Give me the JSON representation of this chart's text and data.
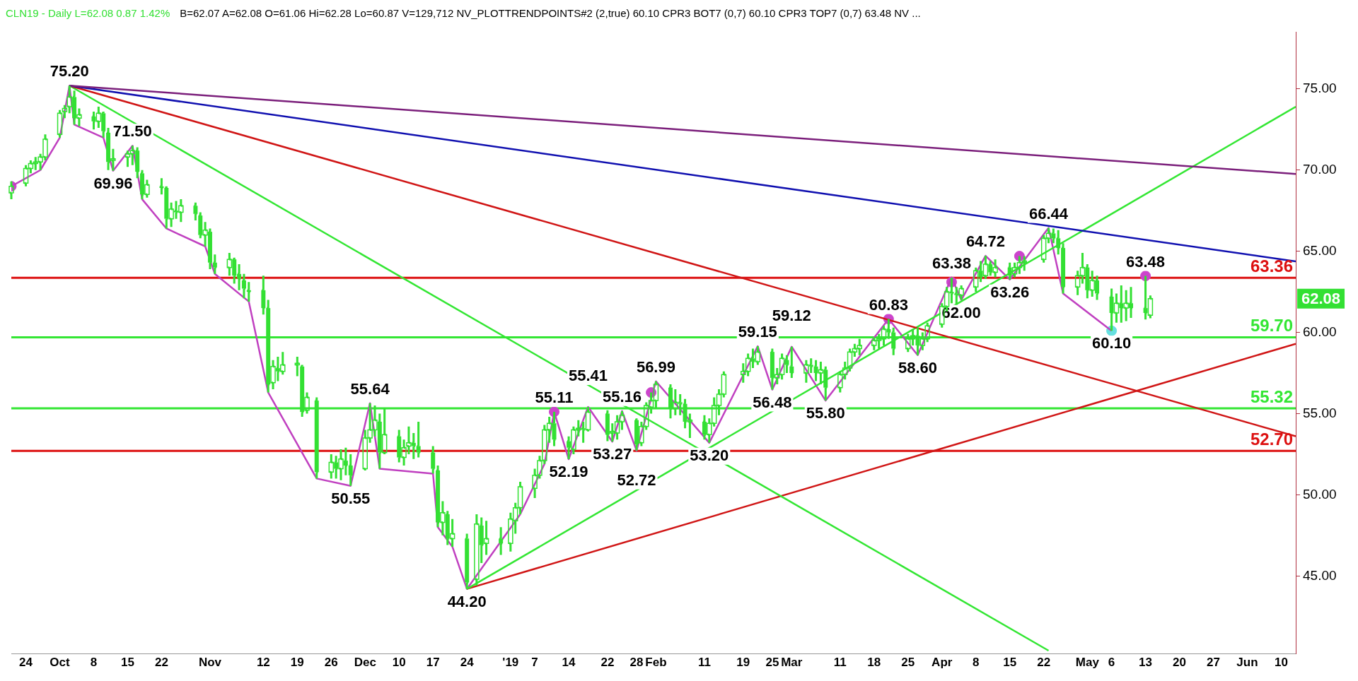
{
  "chart_data": {
    "type": "candlestick",
    "title": "CLN19 - Daily  L=62.08  0.87  1.42%",
    "subtitle": "B=62.07  A=62.08  O=61.06  Hi=62.28  Lo=60.87  V=129,712  NV_PLOTTRENDPOINTS#2 (2,true)  60.10  CPR3 BOT7 (0,7)  60.10  CPR3 TOP7 (0,7)  63.48  NV ...",
    "color": "#33e033",
    "x": [
      "2018-09-21",
      "2018-09-24",
      "2018-09-25",
      "2018-09-26",
      "2018-09-27",
      "2018-09-28",
      "2018-10-01",
      "2018-10-02",
      "2018-10-03",
      "2018-10-04",
      "2018-10-05",
      "2018-10-08",
      "2018-10-09",
      "2018-10-10",
      "2018-10-11",
      "2018-10-12",
      "2018-10-15",
      "2018-10-16",
      "2018-10-17",
      "2018-10-18",
      "2018-10-19",
      "2018-10-22",
      "2018-10-23",
      "2018-10-24",
      "2018-10-25",
      "2018-10-26",
      "2018-10-29",
      "2018-10-30",
      "2018-10-31",
      "2018-11-01",
      "2018-11-02",
      "2018-11-05",
      "2018-11-06",
      "2018-11-07",
      "2018-11-08",
      "2018-11-09",
      "2018-11-12",
      "2018-11-13",
      "2018-11-14",
      "2018-11-15",
      "2018-11-16",
      "2018-11-19",
      "2018-11-20",
      "2018-11-21",
      "2018-11-23",
      "2018-11-26",
      "2018-11-27",
      "2018-11-28",
      "2018-11-29",
      "2018-11-30",
      "2018-12-03",
      "2018-12-04",
      "2018-12-05",
      "2018-12-06",
      "2018-12-07",
      "2018-12-10",
      "2018-12-11",
      "2018-12-12",
      "2018-12-13",
      "2018-12-14",
      "2018-12-17",
      "2018-12-18",
      "2018-12-19",
      "2018-12-20",
      "2018-12-21",
      "2018-12-24",
      "2018-12-26",
      "2018-12-27",
      "2018-12-28",
      "2018-12-31",
      "2019-01-02",
      "2019-01-03",
      "2019-01-04",
      "2019-01-07",
      "2019-01-08",
      "2019-01-09",
      "2019-01-10",
      "2019-01-11",
      "2019-01-14",
      "2019-01-15",
      "2019-01-16",
      "2019-01-17",
      "2019-01-18",
      "2019-01-22",
      "2019-01-23",
      "2019-01-24",
      "2019-01-25",
      "2019-01-28",
      "2019-01-29",
      "2019-01-30",
      "2019-01-31",
      "2019-02-01",
      "2019-02-04",
      "2019-02-05",
      "2019-02-06",
      "2019-02-07",
      "2019-02-08",
      "2019-02-11",
      "2019-02-12",
      "2019-02-13",
      "2019-02-14",
      "2019-02-15",
      "2019-02-19",
      "2019-02-20",
      "2019-02-21",
      "2019-02-22",
      "2019-02-25",
      "2019-02-26",
      "2019-02-27",
      "2019-02-28",
      "2019-03-01",
      "2019-03-04",
      "2019-03-05",
      "2019-03-06",
      "2019-03-07",
      "2019-03-08",
      "2019-03-11",
      "2019-03-12",
      "2019-03-13",
      "2019-03-14",
      "2019-03-15",
      "2019-03-18",
      "2019-03-19",
      "2019-03-20",
      "2019-03-21",
      "2019-03-22",
      "2019-03-25",
      "2019-03-26",
      "2019-03-27",
      "2019-03-28",
      "2019-03-29",
      "2019-04-01",
      "2019-04-02",
      "2019-04-03",
      "2019-04-04",
      "2019-04-05",
      "2019-04-08",
      "2019-04-09",
      "2019-04-10",
      "2019-04-11",
      "2019-04-12",
      "2019-04-15",
      "2019-04-16",
      "2019-04-17",
      "2019-04-18",
      "2019-04-22",
      "2019-04-23",
      "2019-04-24",
      "2019-04-25",
      "2019-04-26",
      "2019-04-29",
      "2019-04-30",
      "2019-05-01",
      "2019-05-02",
      "2019-05-03",
      "2019-05-06",
      "2019-05-07",
      "2019-05-08",
      "2019-05-09",
      "2019-05-10",
      "2019-05-13",
      "2019-05-14"
    ],
    "ohlc": [
      [
        68.6,
        69.3,
        68.2,
        69.0
      ],
      [
        69.2,
        70.3,
        69.0,
        70.1
      ],
      [
        70.1,
        70.6,
        69.8,
        70.4
      ],
      [
        70.4,
        70.8,
        70.0,
        70.5
      ],
      [
        70.5,
        71.0,
        70.0,
        70.8
      ],
      [
        70.8,
        72.2,
        70.6,
        71.9
      ],
      [
        72.2,
        73.7,
        72.0,
        73.5
      ],
      [
        73.6,
        74.0,
        73.2,
        73.8
      ],
      [
        73.9,
        75.2,
        73.5,
        74.5
      ],
      [
        74.5,
        74.9,
        72.8,
        73.2
      ],
      [
        73.2,
        73.8,
        72.7,
        73.4
      ],
      [
        73.3,
        73.6,
        72.5,
        73.0
      ],
      [
        73.0,
        73.9,
        72.6,
        73.5
      ],
      [
        73.5,
        73.6,
        72.0,
        72.4
      ],
      [
        72.3,
        72.6,
        70.0,
        70.5
      ],
      [
        70.6,
        71.3,
        69.96,
        70.7
      ],
      [
        70.8,
        71.2,
        70.2,
        71.0
      ],
      [
        71.0,
        71.5,
        70.3,
        71.2
      ],
      [
        71.2,
        71.4,
        69.5,
        69.9
      ],
      [
        69.8,
        70.0,
        68.2,
        68.5
      ],
      [
        68.5,
        69.4,
        68.3,
        69.1
      ],
      [
        69.0,
        69.5,
        68.5,
        68.9
      ],
      [
        68.9,
        69.0,
        66.4,
        67.0
      ],
      [
        67.0,
        68.0,
        66.5,
        67.6
      ],
      [
        67.5,
        68.1,
        67.0,
        67.4
      ],
      [
        67.4,
        68.2,
        66.8,
        67.8
      ],
      [
        67.8,
        68.0,
        66.9,
        67.3
      ],
      [
        67.2,
        67.4,
        65.8,
        66.0
      ],
      [
        66.0,
        66.8,
        65.3,
        66.3
      ],
      [
        66.2,
        66.4,
        63.9,
        64.3
      ],
      [
        64.3,
        64.8,
        63.6,
        64.0
      ],
      [
        64.0,
        64.9,
        63.5,
        64.5
      ],
      [
        64.5,
        64.6,
        63.0,
        63.5
      ],
      [
        63.6,
        64.2,
        62.6,
        63.3
      ],
      [
        63.2,
        63.6,
        62.1,
        62.7
      ],
      [
        62.6,
        63.1,
        61.9,
        62.5
      ],
      [
        62.6,
        63.5,
        61.1,
        61.5
      ],
      [
        61.5,
        62.0,
        56.3,
        56.8
      ],
      [
        56.9,
        58.3,
        56.5,
        57.9
      ],
      [
        57.8,
        58.5,
        57.0,
        57.6
      ],
      [
        57.6,
        58.8,
        57.4,
        58.0
      ],
      [
        58.0,
        58.5,
        57.3,
        58.1
      ],
      [
        57.9,
        58.0,
        54.8,
        55.1
      ],
      [
        55.2,
        56.3,
        55.0,
        56.0
      ],
      [
        55.8,
        56.0,
        51.0,
        51.4
      ],
      [
        51.4,
        52.5,
        51.0,
        52.0
      ],
      [
        52.0,
        52.4,
        51.0,
        51.6
      ],
      [
        51.6,
        52.8,
        50.9,
        52.2
      ],
      [
        52.1,
        52.9,
        51.2,
        51.8
      ],
      [
        51.8,
        52.5,
        50.55,
        51.2
      ],
      [
        51.6,
        54.0,
        51.5,
        53.5
      ],
      [
        53.5,
        55.64,
        53.2,
        54.0
      ],
      [
        54.0,
        55.5,
        53.6,
        54.6
      ],
      [
        54.5,
        55.0,
        51.6,
        52.6
      ],
      [
        52.6,
        55.3,
        52.5,
        53.7
      ],
      [
        53.6,
        54.0,
        52.0,
        52.3
      ],
      [
        52.3,
        53.4,
        51.8,
        52.9
      ],
      [
        53.0,
        54.2,
        52.5,
        53.2
      ],
      [
        53.2,
        53.8,
        52.2,
        53.0
      ],
      [
        53.0,
        54.5,
        52.3,
        52.6
      ],
      [
        52.6,
        53.0,
        51.3,
        51.6
      ],
      [
        51.5,
        51.8,
        48.0,
        48.3
      ],
      [
        48.3,
        49.6,
        47.5,
        48.9
      ],
      [
        48.8,
        49.0,
        46.9,
        47.3
      ],
      [
        47.3,
        48.5,
        46.8,
        47.6
      ],
      [
        47.3,
        47.6,
        44.2,
        44.6
      ],
      [
        44.8,
        48.8,
        44.4,
        48.2
      ],
      [
        48.1,
        48.6,
        45.8,
        46.9
      ],
      [
        47.0,
        48.4,
        46.3,
        47.3
      ],
      [
        47.3,
        48.0,
        46.3,
        47.0
      ],
      [
        47.0,
        48.9,
        46.5,
        48.5
      ],
      [
        48.4,
        49.5,
        47.6,
        49.2
      ],
      [
        49.2,
        50.8,
        48.8,
        50.5
      ],
      [
        50.4,
        51.6,
        49.8,
        51.2
      ],
      [
        51.2,
        52.4,
        51.0,
        52.1
      ],
      [
        52.1,
        54.3,
        51.9,
        54.0
      ],
      [
        54.0,
        54.8,
        53.2,
        54.4
      ],
      [
        54.4,
        55.11,
        53.0,
        53.4
      ],
      [
        53.3,
        53.6,
        52.19,
        52.9
      ],
      [
        52.8,
        54.2,
        52.5,
        54.0
      ],
      [
        54.0,
        54.6,
        53.6,
        54.1
      ],
      [
        54.1,
        54.5,
        53.2,
        54.0
      ],
      [
        54.0,
        55.41,
        53.9,
        55.1
      ],
      [
        55.0,
        55.2,
        53.3,
        53.7
      ],
      [
        53.8,
        54.4,
        53.27,
        53.9
      ],
      [
        53.8,
        54.9,
        53.4,
        54.5
      ],
      [
        54.5,
        55.16,
        54.0,
        54.9
      ],
      [
        54.6,
        54.7,
        52.72,
        53.1
      ],
      [
        53.2,
        54.5,
        53.0,
        54.2
      ],
      [
        54.2,
        55.7,
        54.0,
        55.5
      ],
      [
        55.4,
        56.3,
        55.0,
        55.8
      ],
      [
        55.8,
        56.99,
        55.3,
        56.8
      ],
      [
        56.6,
        56.8,
        54.7,
        55.3
      ],
      [
        55.3,
        56.5,
        54.9,
        55.7
      ],
      [
        55.7,
        56.2,
        54.9,
        55.6
      ],
      [
        55.6,
        55.9,
        54.1,
        54.5
      ],
      [
        54.5,
        55.0,
        53.5,
        54.6
      ],
      [
        54.5,
        54.9,
        53.4,
        53.7
      ],
      [
        53.7,
        54.7,
        53.2,
        54.4
      ],
      [
        54.4,
        56.0,
        54.2,
        55.5
      ],
      [
        55.5,
        56.5,
        54.9,
        56.2
      ],
      [
        56.2,
        57.6,
        56.0,
        57.4
      ],
      [
        57.4,
        58.1,
        56.9,
        57.6
      ],
      [
        57.6,
        58.7,
        57.3,
        58.4
      ],
      [
        58.4,
        59.0,
        57.8,
        58.2
      ],
      [
        58.2,
        59.15,
        58.0,
        58.8
      ],
      [
        58.8,
        59.0,
        56.48,
        57.2
      ],
      [
        57.2,
        57.8,
        56.8,
        57.4
      ],
      [
        57.4,
        58.7,
        57.1,
        58.4
      ],
      [
        58.3,
        58.6,
        57.5,
        58.0
      ],
      [
        57.9,
        59.12,
        57.2,
        57.5
      ],
      [
        57.5,
        58.3,
        56.9,
        58.0
      ],
      [
        58.0,
        58.4,
        57.5,
        57.9
      ],
      [
        57.9,
        58.3,
        57.0,
        57.5
      ],
      [
        57.5,
        58.2,
        56.8,
        57.7
      ],
      [
        57.7,
        57.9,
        55.8,
        56.6
      ],
      [
        56.6,
        57.6,
        56.3,
        57.4
      ],
      [
        57.4,
        58.2,
        57.1,
        57.8
      ],
      [
        57.8,
        59.0,
        57.6,
        58.8
      ],
      [
        58.8,
        59.3,
        58.5,
        59.0
      ],
      [
        59.0,
        59.6,
        58.6,
        59.2
      ],
      [
        59.2,
        59.7,
        58.9,
        59.5
      ],
      [
        59.5,
        59.9,
        59.0,
        59.6
      ],
      [
        59.6,
        60.4,
        59.2,
        60.2
      ],
      [
        60.2,
        60.83,
        59.6,
        60.0
      ],
      [
        60.0,
        60.3,
        58.6,
        59.0
      ],
      [
        59.0,
        59.9,
        58.8,
        59.6
      ],
      [
        59.6,
        60.2,
        59.2,
        59.8
      ],
      [
        59.8,
        60.3,
        58.6,
        59.2
      ],
      [
        59.2,
        60.0,
        58.9,
        59.6
      ],
      [
        59.6,
        60.6,
        59.4,
        60.4
      ],
      [
        60.5,
        61.8,
        60.3,
        61.6
      ],
      [
        61.6,
        62.8,
        61.3,
        62.5
      ],
      [
        62.5,
        63.38,
        61.8,
        62.4
      ],
      [
        62.4,
        62.8,
        61.7,
        62.3
      ],
      [
        62.3,
        62.9,
        62.0,
        62.7
      ],
      [
        62.8,
        64.0,
        62.5,
        63.8
      ],
      [
        63.8,
        64.4,
        63.1,
        63.4
      ],
      [
        63.5,
        64.72,
        63.3,
        64.2
      ],
      [
        64.2,
        64.4,
        63.5,
        63.7
      ],
      [
        63.7,
        64.5,
        63.4,
        64.0
      ],
      [
        64.0,
        64.3,
        63.26,
        63.5
      ],
      [
        63.6,
        64.3,
        63.4,
        64.0
      ],
      [
        64.0,
        64.7,
        63.6,
        64.3
      ],
      [
        64.3,
        64.7,
        63.8,
        64.4
      ],
      [
        64.5,
        66.0,
        64.3,
        65.8
      ],
      [
        65.8,
        66.44,
        65.5,
        66.1
      ],
      [
        66.1,
        66.4,
        65.5,
        65.8
      ],
      [
        65.8,
        66.3,
        64.8,
        65.2
      ],
      [
        65.2,
        65.5,
        62.4,
        62.8
      ],
      [
        62.8,
        63.8,
        62.3,
        63.5
      ],
      [
        63.5,
        64.9,
        63.0,
        64.0
      ],
      [
        64.0,
        64.2,
        62.1,
        62.6
      ],
      [
        62.6,
        63.8,
        62.2,
        63.2
      ],
      [
        63.2,
        63.5,
        62.0,
        62.4
      ],
      [
        62.2,
        62.7,
        60.1,
        61.2
      ],
      [
        61.2,
        62.4,
        60.6,
        61.8
      ],
      [
        61.8,
        62.9,
        60.6,
        61.5
      ],
      [
        61.5,
        62.6,
        60.7,
        61.8
      ],
      [
        61.8,
        62.8,
        60.9,
        61.5
      ],
      [
        61.5,
        63.48,
        60.8,
        61.2
      ],
      [
        61.06,
        62.28,
        60.87,
        62.08
      ]
    ],
    "series": [
      {
        "type": "line",
        "color": "#7b1f7b",
        "x": [
          "2018-10-03",
          "2019-06-13"
        ],
        "values": [
          75.2,
          69.76
        ]
      },
      {
        "type": "line",
        "color": "#1010b0",
        "x": [
          "2018-10-03",
          "2019-06-13"
        ],
        "values": [
          75.2,
          64.38
        ]
      },
      {
        "type": "line",
        "color": "#d01515",
        "x": [
          "2018-10-03",
          "2019-06-13"
        ],
        "values": [
          75.2,
          53.6
        ]
      },
      {
        "type": "line",
        "color": "#33e633",
        "x": [
          "2018-10-03",
          "2019-04-23"
        ],
        "values": [
          75.2,
          40.4
        ]
      },
      {
        "type": "line",
        "color": "#33e633",
        "x": [
          "2018-12-24",
          "2019-06-13"
        ],
        "values": [
          44.2,
          73.9
        ]
      },
      {
        "type": "line",
        "color": "#d01515",
        "x": [
          "2018-12-24",
          "2019-06-13"
        ],
        "values": [
          44.2,
          59.3
        ]
      },
      {
        "type": "line",
        "color": "#c040c0",
        "x": [
          "2018-09-21",
          "2018-09-27",
          "2018-10-01",
          "2018-10-03",
          "2018-10-04",
          "2018-10-10",
          "2018-10-12",
          "2018-10-16",
          "2018-10-18",
          "2018-10-23",
          "2018-10-31",
          "2018-11-02",
          "2018-11-09",
          "2018-11-13",
          "2018-11-23",
          "2018-11-30",
          "2018-12-04",
          "2018-12-06",
          "2018-12-17",
          "2018-12-18",
          "2018-12-21",
          "2018-12-24",
          "2019-01-04",
          "2019-01-09",
          "2019-01-11",
          "2019-01-14",
          "2019-01-18",
          "2019-01-23",
          "2019-01-25",
          "2019-01-28",
          "2019-02-01",
          "2019-02-12",
          "2019-02-22",
          "2019-02-25",
          "2019-03-01",
          "2019-03-08",
          "2019-03-21",
          "2019-03-27",
          "2019-04-03",
          "2019-04-05",
          "2019-04-10",
          "2019-04-15",
          "2019-04-23",
          "2019-04-26",
          "2019-05-06"
        ],
        "values": [
          69.0,
          70.0,
          72.0,
          75.2,
          72.8,
          72.0,
          69.96,
          71.5,
          68.2,
          66.4,
          65.3,
          63.6,
          61.9,
          56.3,
          51.0,
          50.55,
          55.64,
          51.6,
          51.3,
          48.0,
          46.8,
          44.2,
          48.8,
          51.9,
          55.11,
          52.19,
          55.41,
          53.27,
          55.16,
          52.72,
          56.99,
          53.2,
          59.15,
          56.48,
          59.12,
          55.8,
          60.83,
          58.6,
          63.38,
          62.0,
          64.72,
          63.26,
          66.44,
          62.4,
          60.1
        ]
      },
      {
        "type": "scatter",
        "colors": [
          "#cc44cc",
          "#cc44cc",
          "#cc44cc",
          "#cc44cc",
          "#cc44cc",
          "#cc44cc",
          "#cc44cc",
          "#66e0e0"
        ],
        "x": [
          "2018-09-21",
          "2019-01-11",
          "2019-01-31",
          "2019-03-21",
          "2019-04-03",
          "2019-04-17",
          "2019-05-13",
          "2019-05-06"
        ],
        "values": [
          69.0,
          55.11,
          56.3,
          60.83,
          63.1,
          64.7,
          63.48,
          60.1
        ]
      }
    ],
    "ref_lines": [
      {
        "axis": "y",
        "value": 63.36,
        "label": "63.36",
        "color": "#dd1111"
      },
      {
        "axis": "y",
        "value": 59.7,
        "label": "59.70",
        "color": "#33e633"
      },
      {
        "axis": "y",
        "value": 55.32,
        "label": "55.32",
        "color": "#33e633"
      },
      {
        "axis": "y",
        "value": 52.7,
        "label": "52.70",
        "color": "#dd1111"
      }
    ],
    "annotations": [
      {
        "text": "75.20",
        "x": "2018-10-03",
        "y": 75.2
      },
      {
        "text": "71.50",
        "x": "2018-10-16",
        "y": 71.5
      },
      {
        "text": "69.96",
        "x": "2018-10-12",
        "y": 69.96
      },
      {
        "text": "55.64",
        "x": "2018-12-04",
        "y": 55.64
      },
      {
        "text": "50.55",
        "x": "2018-11-30",
        "y": 50.55
      },
      {
        "text": "44.20",
        "x": "2018-12-24",
        "y": 44.2
      },
      {
        "text": "55.11",
        "x": "2019-01-11",
        "y": 55.11
      },
      {
        "text": "52.19",
        "x": "2019-01-14",
        "y": 52.19
      },
      {
        "text": "55.41",
        "x": "2019-01-18",
        "y": 55.41
      },
      {
        "text": "53.27",
        "x": "2019-01-23",
        "y": 53.27
      },
      {
        "text": "55.16",
        "x": "2019-01-25",
        "y": 55.16
      },
      {
        "text": "52.72",
        "x": "2019-01-28",
        "y": 52.72
      },
      {
        "text": "56.99",
        "x": "2019-02-01",
        "y": 56.99
      },
      {
        "text": "53.20",
        "x": "2019-02-12",
        "y": 53.2
      },
      {
        "text": "59.15",
        "x": "2019-02-22",
        "y": 59.15
      },
      {
        "text": "56.48",
        "x": "2019-02-25",
        "y": 56.48
      },
      {
        "text": "59.12",
        "x": "2019-03-01",
        "y": 59.12
      },
      {
        "text": "55.80",
        "x": "2019-03-08",
        "y": 55.8
      },
      {
        "text": "60.83",
        "x": "2019-03-21",
        "y": 60.83
      },
      {
        "text": "58.60",
        "x": "2019-03-27",
        "y": 58.6
      },
      {
        "text": "63.38",
        "x": "2019-04-03",
        "y": 63.38
      },
      {
        "text": "62.00",
        "x": "2019-04-05",
        "y": 62.0
      },
      {
        "text": "64.72",
        "x": "2019-04-10",
        "y": 64.72
      },
      {
        "text": "63.26",
        "x": "2019-04-15",
        "y": 63.26
      },
      {
        "text": "66.44",
        "x": "2019-04-23",
        "y": 66.44
      },
      {
        "text": "60.10",
        "x": "2019-05-06",
        "y": 60.1
      },
      {
        "text": "63.48",
        "x": "2019-05-13",
        "y": 63.48
      },
      "62.08"
    ],
    "xlim": [
      "2018-09-21",
      "2019-06-13"
    ],
    "xticks": [
      {
        "value": "2018-09-24",
        "label": "24"
      },
      {
        "value": "2018-10-01",
        "label": "Oct"
      },
      {
        "value": "2018-10-08",
        "label": "8"
      },
      {
        "value": "2018-10-15",
        "label": "15"
      },
      {
        "value": "2018-10-22",
        "label": "22"
      },
      {
        "value": "2018-11-01",
        "label": "Nov"
      },
      {
        "value": "2018-11-12",
        "label": "12"
      },
      {
        "value": "2018-11-19",
        "label": "19"
      },
      {
        "value": "2018-11-26",
        "label": "26"
      },
      {
        "value": "2018-12-03",
        "label": "Dec"
      },
      {
        "value": "2018-12-10",
        "label": "10"
      },
      {
        "value": "2018-12-17",
        "label": "17"
      },
      {
        "value": "2018-12-24",
        "label": "24"
      },
      {
        "value": "2019-01-02",
        "label": "'19"
      },
      {
        "value": "2019-01-07",
        "label": "7"
      },
      {
        "value": "2019-01-14",
        "label": "14"
      },
      {
        "value": "2019-01-22",
        "label": "22"
      },
      {
        "value": "2019-01-28",
        "label": "28"
      },
      {
        "value": "2019-02-01",
        "label": "Feb"
      },
      {
        "value": "2019-02-11",
        "label": "11"
      },
      {
        "value": "2019-02-19",
        "label": "19"
      },
      {
        "value": "2019-02-25",
        "label": "25"
      },
      {
        "value": "2019-03-01",
        "label": "Mar"
      },
      {
        "value": "2019-03-11",
        "label": "11"
      },
      {
        "value": "2019-03-18",
        "label": "18"
      },
      {
        "value": "2019-03-25",
        "label": "25"
      },
      {
        "value": "2019-04-01",
        "label": "Apr"
      },
      {
        "value": "2019-04-08",
        "label": "8"
      },
      {
        "value": "2019-04-15",
        "label": "15"
      },
      {
        "value": "2019-04-22",
        "label": "22"
      },
      {
        "value": "2019-05-01",
        "label": "May"
      },
      {
        "value": "2019-05-06",
        "label": "6"
      },
      {
        "value": "2019-05-13",
        "label": "13"
      },
      {
        "value": "2019-05-20",
        "label": "20"
      },
      {
        "value": "2019-05-27",
        "label": "27"
      },
      {
        "value": "2019-06-03",
        "label": "Jun"
      },
      {
        "value": "2019-06-10",
        "label": "10"
      }
    ],
    "ylim": [
      40.2,
      78.5
    ],
    "yticks": [
      {
        "value": 45,
        "label": "45.00"
      },
      {
        "value": 50,
        "label": "50.00"
      },
      {
        "value": 55,
        "label": "55.00"
      },
      {
        "value": 60,
        "label": "60.00"
      },
      {
        "value": 65,
        "label": "65.00"
      },
      {
        "value": 70,
        "label": "70.00"
      },
      {
        "value": 75,
        "label": "75.00"
      }
    ],
    "grid": false,
    "legend": false
  }
}
